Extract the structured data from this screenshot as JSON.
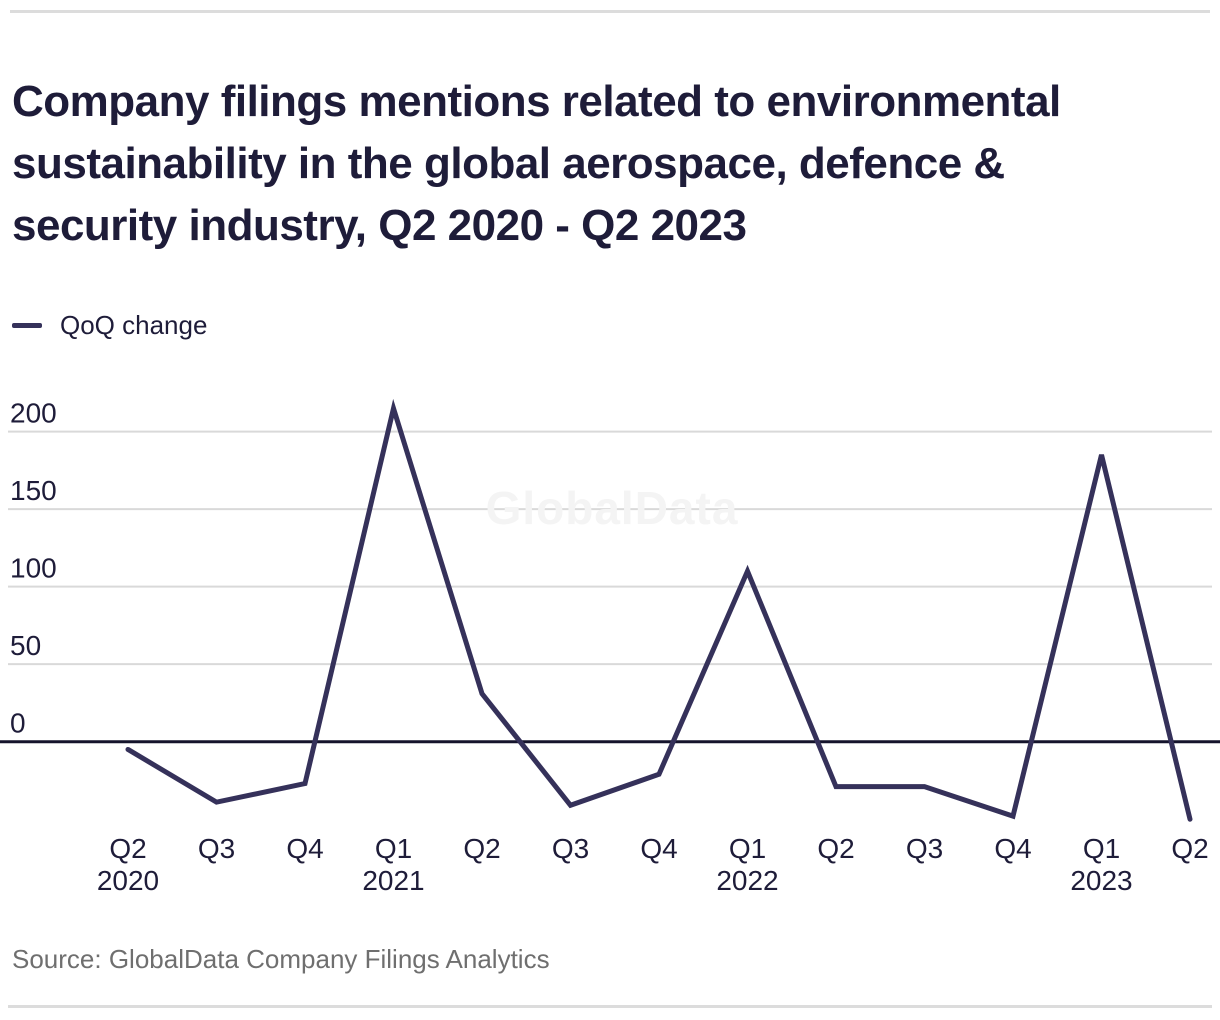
{
  "page": {
    "title": "Company filings mentions related to environmental sustainability in the global aerospace, defence & security industry, Q2 2020 - Q2 2023",
    "title_lines": [
      "Company filings mentions related to environmental",
      "sustainability in the global aerospace, defence &",
      "security industry, Q2 2020 - Q2 2023"
    ],
    "source": "Source: GlobalData Company Filings Analytics",
    "watermark": "GlobalData"
  },
  "legend": {
    "label": "QoQ change"
  },
  "colors": {
    "accent_line": "#35315a",
    "title_text": "#1e1c39",
    "tick_text": "#1e1c39",
    "grid_line": "#d9d9d9",
    "zero_line": "#15142c",
    "source_text": "#6f6f6f",
    "rule": "#dcdcdc",
    "watermark": "#f4f4f4"
  },
  "chart_data": {
    "type": "line",
    "title": "Company filings mentions related to environmental sustainability in the global aerospace, defence & security industry, Q2 2020 - Q2 2023",
    "xlabel": "",
    "ylabel": "",
    "categories": [
      "Q2 2020",
      "Q3 2020",
      "Q4 2020",
      "Q1 2021",
      "Q2 2021",
      "Q3 2021",
      "Q4 2021",
      "Q1 2022",
      "Q2 2022",
      "Q3 2022",
      "Q4 2022",
      "Q1 2023",
      "Q2 2023"
    ],
    "x_tick_labels": [
      "Q2",
      "Q3",
      "Q4",
      "Q1",
      "Q2",
      "Q3",
      "Q4",
      "Q1",
      "Q2",
      "Q3",
      "Q4",
      "Q1",
      "Q2"
    ],
    "x_year_labels": {
      "0": "2020",
      "3": "2021",
      "7": "2022",
      "11": "2023"
    },
    "series": [
      {
        "name": "QoQ change",
        "values": [
          -5,
          -39,
          -27,
          215,
          31,
          -41,
          -21,
          110,
          -29,
          -29,
          -48,
          185,
          -50
        ]
      }
    ],
    "y_ticks": [
      0,
      50,
      100,
      150,
      200
    ],
    "ylim": [
      -65,
      230
    ],
    "grid": true,
    "legend_position": "top-left"
  }
}
